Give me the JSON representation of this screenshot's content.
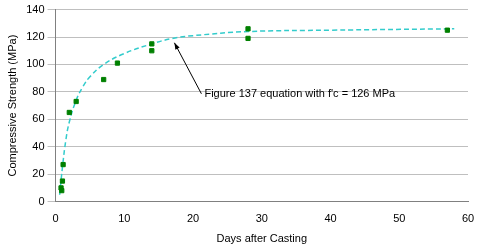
{
  "chart_data": {
    "type": "scatter",
    "x_label": "Days after Casting",
    "y_label": "Compressive Strength (MPa)",
    "xlim": [
      0,
      60
    ],
    "xticks": [
      0,
      10,
      20,
      30,
      40,
      50,
      60
    ],
    "ylim": [
      0,
      140
    ],
    "yticks": [
      0,
      20,
      40,
      60,
      80,
      100,
      120,
      140
    ],
    "grid": "y",
    "series": [
      {
        "type": "scatter",
        "color": "#008000",
        "marker": "square",
        "x": [
          0.8,
          0.9,
          1.0,
          1.1,
          2,
          3,
          7,
          9,
          14,
          14,
          28,
          28,
          57
        ],
        "values": [
          10,
          8,
          15,
          27,
          65,
          73,
          89,
          101,
          115,
          110,
          126,
          119,
          125
        ]
      },
      {
        "type": "line",
        "color": "#33cccc",
        "line_style": "dashed",
        "x": [
          0.6,
          1,
          1.5,
          2,
          3,
          4,
          5,
          7,
          10,
          14,
          17,
          20,
          28,
          40,
          58
        ],
        "values": [
          5,
          25,
          45,
          58,
          74,
          84,
          91,
          100,
          108,
          115,
          119,
          121,
          124,
          125,
          126
        ]
      }
    ],
    "annotations": [
      {
        "text": "Figure 137 equation with f'c = 126 MPa",
        "x": 17,
        "y": 118
      }
    ]
  }
}
